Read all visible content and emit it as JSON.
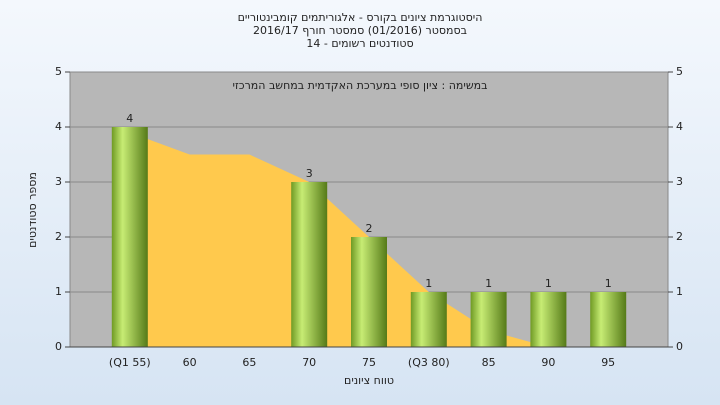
{
  "chart_data": {
    "type": "bar",
    "title_lines": [
      "היסטוגרמת ציונים בקורס - אלגוריתמים קומבינטוריים",
      "בסמסטר  (01/2016)  סמסטר חורף 2016/17",
      "סטודנטים רשומים - 14"
    ],
    "annotation": "במשימה : ציון סופי במערכת האקדמית במחשב המרכזי",
    "x_label": "טווח ציונים",
    "y_label": "מספר סטודנטים",
    "categories": [
      "(Q1 55)",
      "60",
      "65",
      "70",
      "75",
      "(Q3 80)",
      "85",
      "90",
      "95"
    ],
    "series": [
      {
        "type": "area",
        "color": "#ffc94d",
        "values": [
          3.9,
          3.5,
          3.5,
          3,
          2,
          1,
          0.3,
          0,
          0
        ]
      },
      {
        "type": "bar",
        "color": "#8fc23c",
        "values": [
          4,
          0,
          0,
          3,
          2,
          1,
          1,
          1,
          1
        ]
      }
    ],
    "ylim": [
      0,
      5
    ],
    "yticks": [
      0,
      1,
      2,
      3,
      4,
      5
    ],
    "y2lim": [
      0,
      5
    ],
    "y2ticks": [
      0,
      1,
      2,
      3,
      4,
      5
    ],
    "grid": true
  }
}
